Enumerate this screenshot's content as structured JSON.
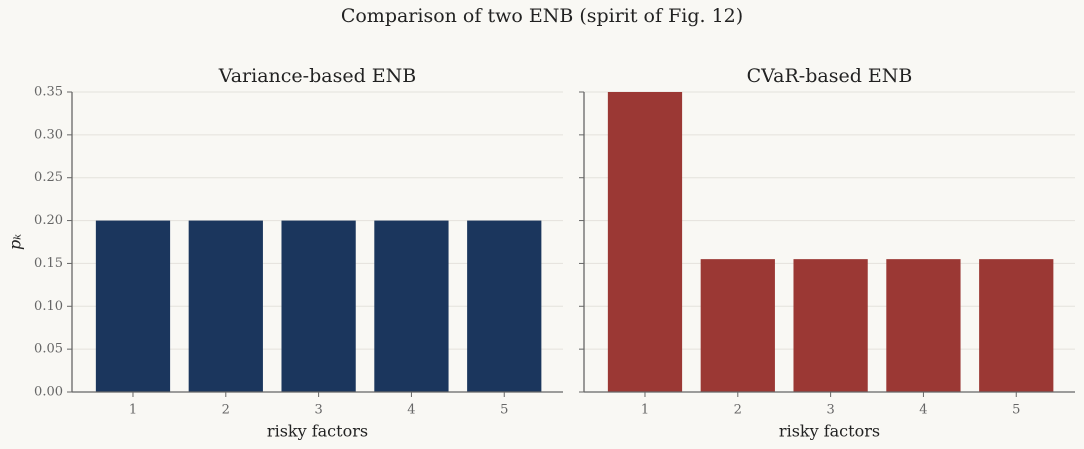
{
  "title": "Comparison of two ENB (spirit of Fig. 12)",
  "chart_data": [
    {
      "type": "bar",
      "title": "Variance-based ENB",
      "xlabel": "risky factors",
      "ylabel": "pₖ",
      "categories": [
        "1",
        "2",
        "3",
        "4",
        "5"
      ],
      "values": [
        0.2,
        0.2,
        0.2,
        0.2,
        0.2
      ],
      "color": "#1b365d",
      "ylim": [
        0,
        0.35
      ],
      "yticks": [
        {
          "value": 0,
          "label": "0.00"
        },
        {
          "value": 0.05,
          "label": "0.05"
        },
        {
          "value": 0.1,
          "label": "0.10"
        },
        {
          "value": 0.15,
          "label": "0.15"
        },
        {
          "value": 0.2,
          "label": "0.20"
        },
        {
          "value": 0.25,
          "label": "0.25"
        },
        {
          "value": 0.3,
          "label": "0.30"
        },
        {
          "value": 0.35,
          "label": "0.35"
        }
      ],
      "grid": true,
      "ytick_labels": true
    },
    {
      "type": "bar",
      "title": "CVaR-based ENB",
      "xlabel": "risky factors",
      "categories": [
        "1",
        "2",
        "3",
        "4",
        "5"
      ],
      "values": [
        0.35,
        0.155,
        0.155,
        0.155,
        0.155
      ],
      "color": "#9b3834",
      "ylim": [
        0,
        0.35
      ],
      "yticks": [
        0,
        0.05,
        0.1,
        0.15,
        0.2,
        0.25,
        0.3,
        0.35
      ],
      "grid": true,
      "ytick_labels": false
    }
  ]
}
